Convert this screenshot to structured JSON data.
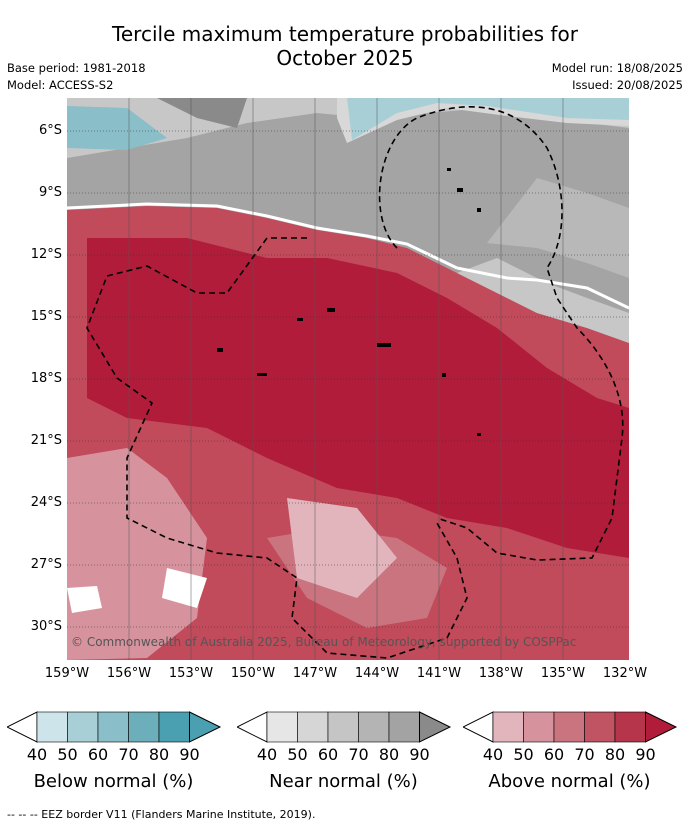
{
  "title_line1": "Tercile maximum temperature probabilities for",
  "title_line2": "October 2025",
  "base_period": "Base period: 1981-2018",
  "model": "Model: ACCESS-S2",
  "model_run": "Model run: 18/08/2025",
  "issued": "Issued: 20/08/2025",
  "copyright": "© Commonwealth of Australia 2025, Bureau of Meteorology, supported by COSPPac",
  "lat_labels": [
    "6°S",
    "9°S",
    "12°S",
    "15°S",
    "18°S",
    "21°S",
    "24°S",
    "27°S",
    "30°S"
  ],
  "lon_labels": [
    "159°W",
    "156°W",
    "153°W",
    "150°W",
    "147°W",
    "144°W",
    "141°W",
    "138°W",
    "135°W",
    "132°W"
  ],
  "colorbars": [
    {
      "label": "Below normal (%)",
      "ticks": [
        "40",
        "50",
        "60",
        "70",
        "80",
        "90"
      ],
      "colors": [
        "#ffffff",
        "#cde5ea",
        "#a9cfd6",
        "#8abec8",
        "#6caeba",
        "#4aa0b0"
      ]
    },
    {
      "label": "Near normal (%)",
      "ticks": [
        "40",
        "50",
        "60",
        "70",
        "80",
        "90"
      ],
      "colors": [
        "#ffffff",
        "#e6e6e6",
        "#d6d6d6",
        "#c5c5c5",
        "#b4b4b4",
        "#a3a3a3",
        "#8a8a8a"
      ]
    },
    {
      "label": "Above normal (%)",
      "ticks": [
        "40",
        "50",
        "60",
        "70",
        "80",
        "90"
      ],
      "colors": [
        "#ffffff",
        "#e2b5bd",
        "#d6939e",
        "#ca7480",
        "#c15462",
        "#b7354b",
        "#b01c3a"
      ]
    }
  ],
  "footnote": "--  --  -- EEZ border V11 (Flanders Marine Institute, 2019)."
}
